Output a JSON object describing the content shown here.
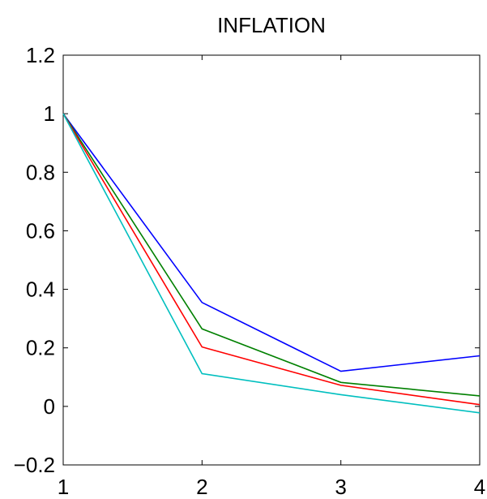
{
  "chart_data": {
    "type": "line",
    "title": "INFLATION",
    "xlabel": "",
    "ylabel": "",
    "x": [
      1,
      2,
      3,
      4
    ],
    "xlim": [
      1,
      4
    ],
    "ylim": [
      -0.2,
      1.2
    ],
    "xticks": [
      1,
      2,
      3,
      4
    ],
    "xtick_labels": [
      "1",
      "2",
      "3",
      "4"
    ],
    "yticks": [
      -0.2,
      0,
      0.2,
      0.4,
      0.6,
      0.8,
      1,
      1.2
    ],
    "ytick_labels": [
      "−0.2",
      "0",
      "0.2",
      "0.4",
      "0.6",
      "0.8",
      "1",
      "1.2"
    ],
    "grid": false,
    "legend": false,
    "series": [
      {
        "color": "#0000ff",
        "values": [
          1.0,
          0.355,
          0.12,
          0.173
        ]
      },
      {
        "color": "#008000",
        "values": [
          1.0,
          0.265,
          0.082,
          0.036
        ]
      },
      {
        "color": "#ff0000",
        "values": [
          1.0,
          0.203,
          0.072,
          0.006
        ]
      },
      {
        "color": "#00bfbf",
        "values": [
          1.0,
          0.112,
          0.04,
          -0.022
        ]
      }
    ]
  }
}
